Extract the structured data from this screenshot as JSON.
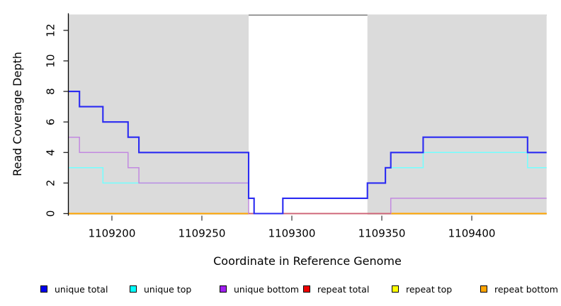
{
  "chart_data": {
    "type": "line",
    "subtype": "step",
    "title": "",
    "xlabel": "Coordinate in Reference Genome",
    "ylabel": "Read Coverage Depth",
    "xlim": [
      1109175.8,
      1109441.6
    ],
    "ylim": [
      0,
      13
    ],
    "x_ticks": [
      1109200,
      1109250,
      1109300,
      1109350,
      1109400
    ],
    "y_ticks": [
      0,
      2,
      4,
      6,
      8,
      10,
      12
    ],
    "grid": false,
    "plot_background": "#FFFFFF",
    "masked_region_color": "#DBDBDB",
    "top_border_color": "#707070",
    "background_regions": [
      {
        "name": "masked-left",
        "x_start": 1109175.8,
        "x_end": 1109276
      },
      {
        "name": "masked-right",
        "x_start": 1109342,
        "x_end": 1109441.6
      }
    ],
    "series": [
      {
        "name": "unique total",
        "color": "#2B2BF2",
        "points": [
          [
            1109175.8,
            8
          ],
          [
            1109182,
            7
          ],
          [
            1109195,
            6
          ],
          [
            1109209,
            5
          ],
          [
            1109215,
            4
          ],
          [
            1109276,
            1
          ],
          [
            1109279,
            0
          ],
          [
            1109295,
            1
          ],
          [
            1109342,
            2
          ],
          [
            1109352,
            3
          ],
          [
            1109355,
            4
          ],
          [
            1109373,
            5
          ],
          [
            1109431,
            4
          ],
          [
            1109441.6,
            4
          ]
        ]
      },
      {
        "name": "unique top",
        "color": "#73FFFF",
        "points": [
          [
            1109175.8,
            3
          ],
          [
            1109195,
            2
          ],
          [
            1109276,
            1
          ],
          [
            1109279,
            0
          ],
          [
            1109295,
            1
          ],
          [
            1109342,
            2
          ],
          [
            1109352,
            3
          ],
          [
            1109373,
            4
          ],
          [
            1109431,
            3
          ],
          [
            1109441.6,
            3
          ]
        ]
      },
      {
        "name": "unique bottom",
        "color": "#C289E0",
        "points": [
          [
            1109175.8,
            5
          ],
          [
            1109182,
            4
          ],
          [
            1109209,
            3
          ],
          [
            1109215,
            2
          ],
          [
            1109276,
            0
          ],
          [
            1109355,
            1
          ],
          [
            1109441.6,
            1
          ]
        ]
      },
      {
        "name": "repeat total",
        "color": "#EE0000",
        "points": [
          [
            1109175.8,
            0
          ],
          [
            1109441.6,
            0
          ]
        ]
      },
      {
        "name": "repeat top",
        "color": "#FFFF00",
        "points": [
          [
            1109175.8,
            0
          ],
          [
            1109441.6,
            0
          ]
        ]
      },
      {
        "name": "repeat bottom",
        "color": "#FFA500",
        "points": [
          [
            1109175.8,
            0
          ],
          [
            1109441.6,
            0
          ]
        ]
      }
    ],
    "zero_line_overlap": {
      "x_start": 1109276,
      "x_end": 1109355,
      "y": 0,
      "color": "#CC5E7C"
    }
  },
  "legend": {
    "items": [
      {
        "label": "unique total",
        "color": "#0000EE"
      },
      {
        "label": "unique top",
        "color": "#00FFFF"
      },
      {
        "label": "unique bottom",
        "color": "#A020F0"
      },
      {
        "label": "repeat total",
        "color": "#EE0000"
      },
      {
        "label": "repeat top",
        "color": "#FFFF00"
      },
      {
        "label": "repeat bottom",
        "color": "#FFA500"
      }
    ]
  }
}
